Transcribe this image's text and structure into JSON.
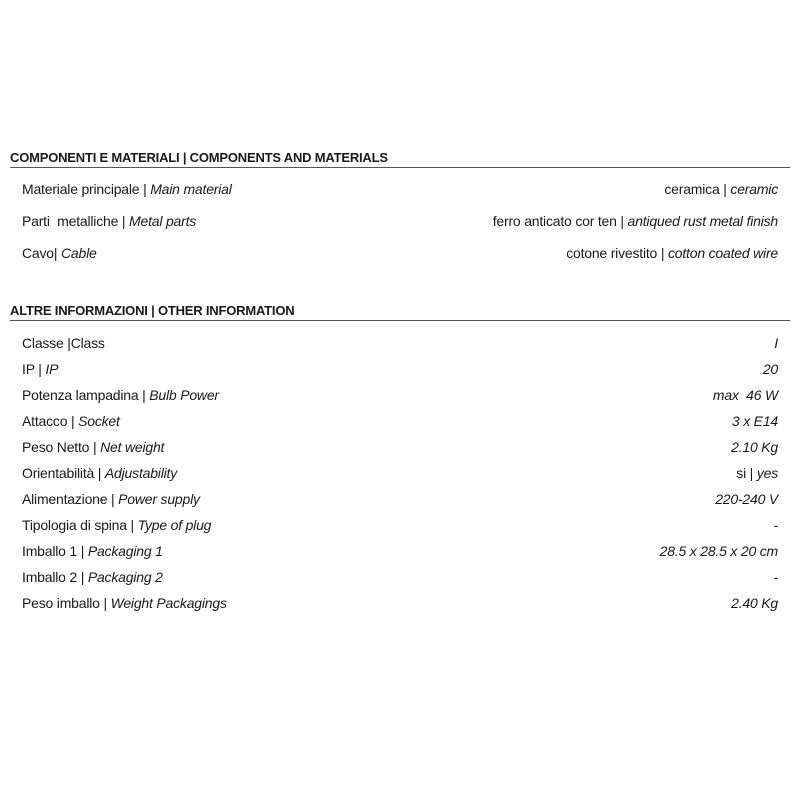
{
  "sections": [
    {
      "title": "COMPONENTI E MATERIALI | COMPONENTS AND MATERIALS",
      "rows": [
        {
          "label_it": "Materiale principale | ",
          "label_en": "Main material",
          "value_plain": "ceramica | ",
          "value_italic": "ceramic"
        },
        {
          "label_it": "Parti  metalliche | ",
          "label_en": "Metal parts",
          "value_plain": "ferro anticato cor ten | ",
          "value_italic": "antiqued rust metal finish"
        },
        {
          "label_it": "Cavo| ",
          "label_en": "Cable",
          "value_plain": "cotone rivestito | ",
          "value_italic": "cotton coated wire"
        }
      ]
    },
    {
      "title": "ALTRE INFORMAZIONI | OTHER INFORMATION",
      "rows": [
        {
          "label_it": "Classe |Class",
          "label_en": "",
          "value_plain": "",
          "value_italic": "I"
        },
        {
          "label_it": "IP | ",
          "label_en": "IP",
          "value_plain": "",
          "value_italic": "20"
        },
        {
          "label_it": "Potenza lampadina | ",
          "label_en": "Bulb Power",
          "value_plain": "",
          "value_italic": "max  46 W"
        },
        {
          "label_it": "Attacco | ",
          "label_en": "Socket",
          "value_plain": "",
          "value_italic": "3 x E14"
        },
        {
          "label_it": "Peso Netto | ",
          "label_en": "Net weight",
          "value_plain": "",
          "value_italic": "2.10 Kg"
        },
        {
          "label_it": "Orientabilità | ",
          "label_en": "Adjustability",
          "value_plain": "si | ",
          "value_italic": "yes"
        },
        {
          "label_it": "Alimentazione | ",
          "label_en": "Power supply",
          "value_plain": "",
          "value_italic": "220-240 V"
        },
        {
          "label_it": "Tipologia di spina | ",
          "label_en": "Type of plug",
          "value_plain": "",
          "value_italic": "-"
        },
        {
          "label_it": "Imballo 1 | ",
          "label_en": "Packaging 1",
          "value_plain": "",
          "value_italic": "28.5 x 28.5 x 20 cm"
        },
        {
          "label_it": "Imballo 2 | ",
          "label_en": "Packaging 2",
          "value_plain": "",
          "value_italic": "-"
        },
        {
          "label_it": "Peso imballo | ",
          "label_en": "Weight Packagings",
          "value_plain": "",
          "value_italic": "2.40 Kg"
        }
      ]
    }
  ]
}
